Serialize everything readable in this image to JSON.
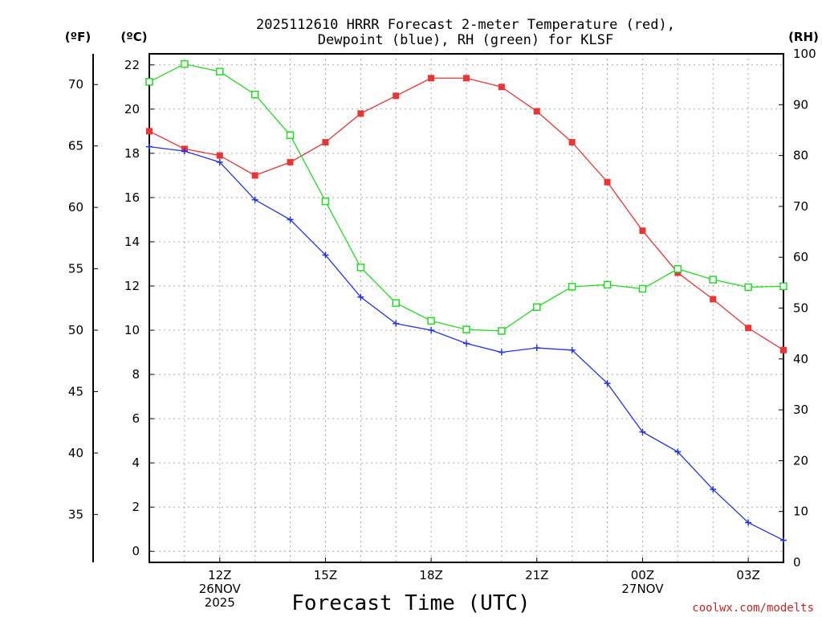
{
  "chart_data": {
    "type": "line",
    "title": [
      "2025112610 HRRR Forecast 2-meter Temperature (red),",
      "Dewpoint (blue), RH (green) for KLSF"
    ],
    "xlabel": "Forecast Time (UTC)",
    "left_unit_f": "(ºF)",
    "left_unit_c": "(ºC)",
    "right_unit": "(RH)",
    "credit": "coolwx.com/modelts",
    "x_hours": [
      10,
      11,
      12,
      13,
      14,
      15,
      16,
      17,
      18,
      19,
      20,
      21,
      22,
      23,
      24,
      25,
      26,
      27,
      28
    ],
    "xlim": [
      10,
      28
    ],
    "x_ticks": [
      {
        "hour": 12,
        "lines": [
          "12Z",
          "26NOV",
          "2025"
        ]
      },
      {
        "hour": 15,
        "lines": [
          "15Z"
        ]
      },
      {
        "hour": 18,
        "lines": [
          "18Z"
        ]
      },
      {
        "hour": 21,
        "lines": [
          "21Z"
        ]
      },
      {
        "hour": 24,
        "lines": [
          "00Z",
          "27NOV"
        ]
      },
      {
        "hour": 27,
        "lines": [
          "03Z"
        ]
      }
    ],
    "x_gridlines": [
      11,
      12,
      13,
      14,
      15,
      16,
      17,
      18,
      19,
      20,
      21,
      22,
      23,
      24,
      25,
      26,
      27
    ],
    "celsius_axis": {
      "ylim": [
        -0.5,
        22.5
      ],
      "ticks": [
        "0",
        "2",
        "4",
        "6",
        "8",
        "10",
        "12",
        "14",
        "16",
        "18",
        "20",
        "22"
      ]
    },
    "fahrenheit_axis": {
      "ticks": [
        "35",
        "40",
        "45",
        "50",
        "55",
        "60",
        "65",
        "70"
      ]
    },
    "rh_axis": {
      "ylim": [
        0,
        100
      ],
      "ticks": [
        "0",
        "10",
        "20",
        "30",
        "40",
        "50",
        "60",
        "70",
        "80",
        "90",
        "100"
      ]
    },
    "series": [
      {
        "name": "Temperature",
        "units": "C",
        "color": "#ee3333",
        "marker": "filled-square",
        "values": [
          19.0,
          18.2,
          17.9,
          17.0,
          17.6,
          18.5,
          19.8,
          20.6,
          21.4,
          21.4,
          21.0,
          19.9,
          18.5,
          16.7,
          14.5,
          12.6,
          11.4,
          10.1,
          9.1
        ]
      },
      {
        "name": "Dewpoint",
        "units": "C",
        "color": "#2233ee",
        "marker": "plus",
        "values": [
          18.3,
          18.1,
          17.6,
          15.9,
          15.0,
          13.4,
          11.5,
          10.3,
          10.0,
          9.4,
          9.0,
          9.2,
          9.1,
          7.6,
          5.4,
          4.5,
          2.8,
          1.3,
          0.5
        ]
      },
      {
        "name": "RH",
        "units": "%",
        "color": "#22dd22",
        "marker": "hollow-square",
        "values": [
          94.5,
          98.0,
          96.5,
          92.0,
          84.0,
          71.0,
          58.0,
          51.0,
          47.5,
          45.8,
          45.5,
          50.2,
          54.2,
          54.6,
          53.8,
          57.7,
          55.6,
          54.1,
          54.3
        ]
      }
    ]
  }
}
